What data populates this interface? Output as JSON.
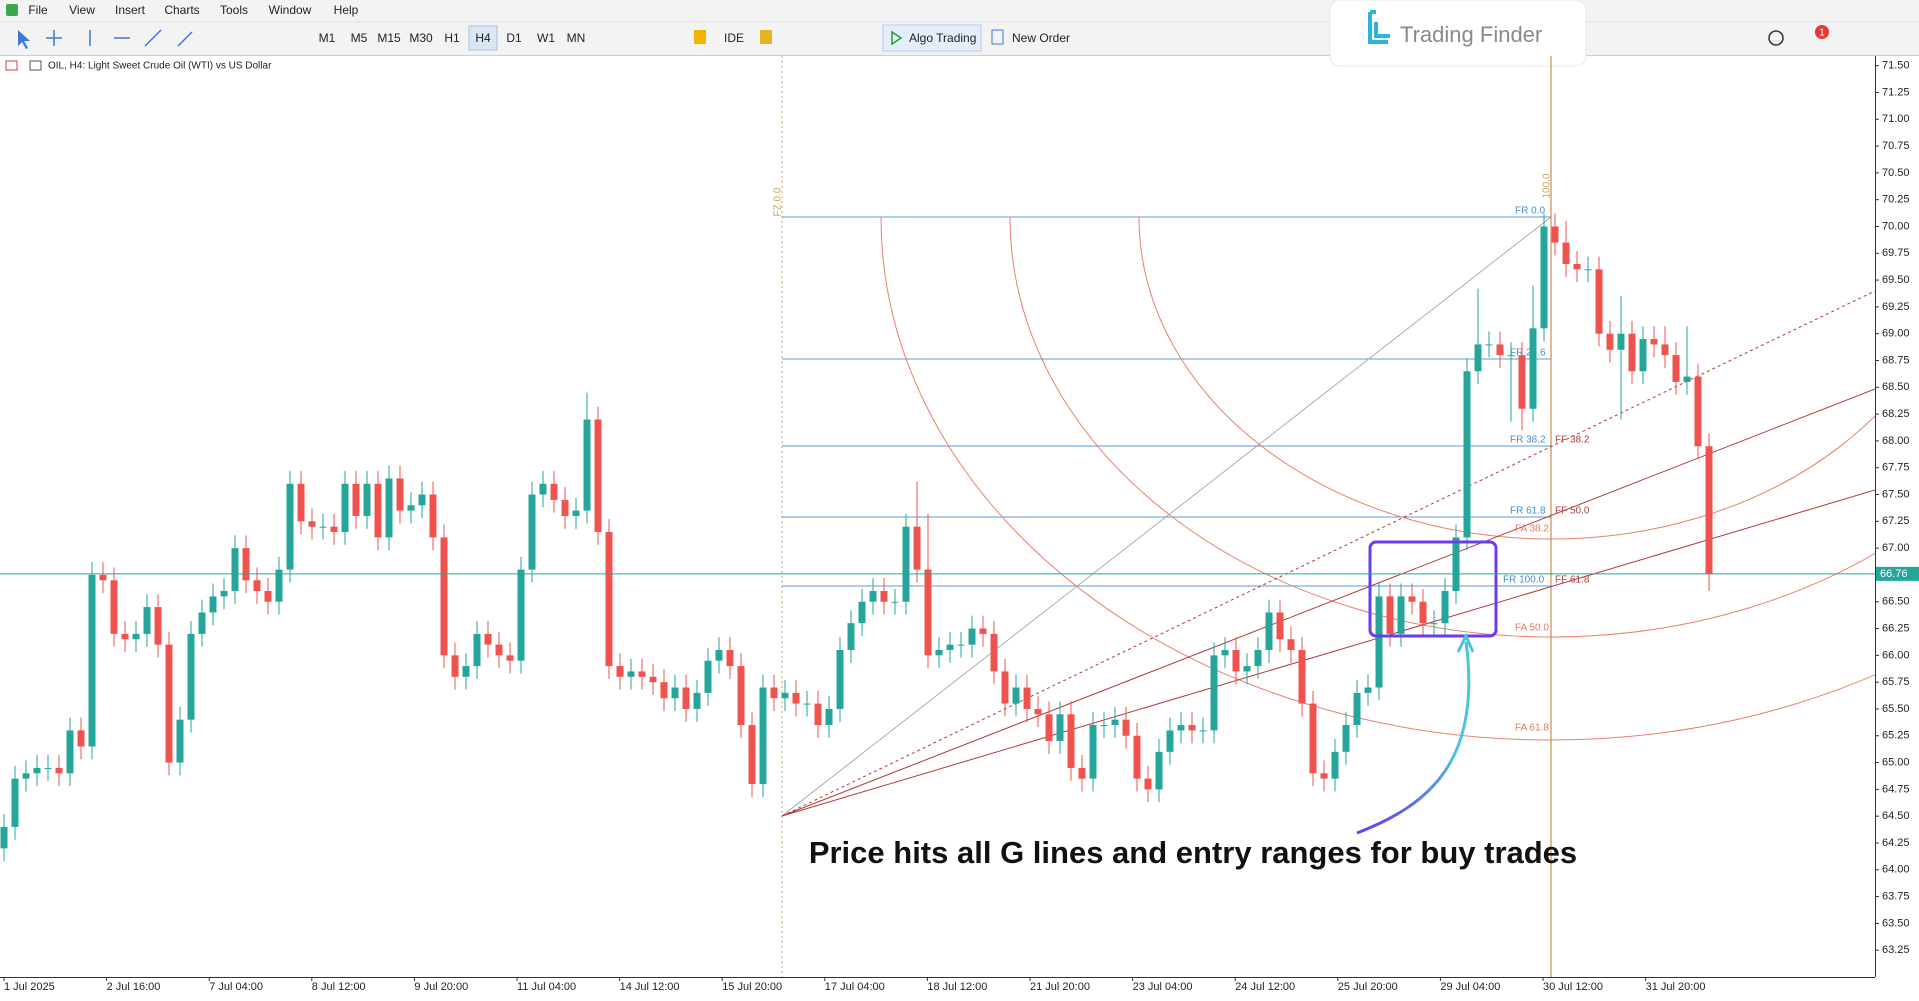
{
  "menu": [
    "File",
    "View",
    "Insert",
    "Charts",
    "Tools",
    "Window",
    "Help"
  ],
  "toolbar": {
    "timeframes": [
      "M1",
      "M5",
      "M15",
      "M30",
      "H1",
      "H4",
      "D1",
      "W1",
      "MN"
    ],
    "ide": "IDE",
    "algo_trading": "Algo Trading",
    "new_order": "New Order",
    "notifications": 1
  },
  "logo": "Trading Finder",
  "annotation": "Price hits all G lines and entry ranges for buy trades",
  "drawing": {
    "fz": "FZ 0.0",
    "top": "100.0",
    "fr": [
      "FR 0.0",
      "FR 23.6",
      "FR 38.2",
      "FR 61.8",
      "FR 100.0"
    ],
    "ff": [
      "FF 38.2",
      "FF 50.0",
      "FF 61.8"
    ],
    "fa": [
      "FA 38.2",
      "FA 50.0",
      "FA 61.8"
    ]
  },
  "chart_data": {
    "type": "candlestick",
    "title": "OIL, H4: Light Sweet Crude Oil (WTI) vs US Dollar",
    "up_color": "#26a69a",
    "down_color": "#ef5350",
    "last_price": 66.76,
    "last_price_color": "#26a69a",
    "x": [
      "1 Jul 2025",
      "2 Jul 16:00",
      "7 Jul 04:00",
      "8 Jul 12:00",
      "9 Jul 20:00",
      "11 Jul 04:00",
      "14 Jul 12:00",
      "15 Jul 20:00",
      "17 Jul 04:00",
      "18 Jul 12:00",
      "21 Jul 20:00",
      "23 Jul 04:00",
      "24 Jul 12:00",
      "25 Jul 20:00",
      "29 Jul 04:00",
      "30 Jul 12:00",
      "31 Jul 20:00"
    ],
    "ylim": [
      63.0,
      71.59
    ],
    "yticks": [
      63.25,
      {
        "value": 63.5,
        "label": "63.50"
      },
      63.75,
      {
        "value": 64,
        "label": "64.00"
      },
      64.25,
      {
        "value": 64.5,
        "label": "64.50"
      },
      64.75,
      {
        "value": 65,
        "label": "65.00"
      },
      65.25,
      {
        "value": 65.5,
        "label": "65.50"
      },
      65.75,
      {
        "value": 66,
        "label": "66.00"
      },
      66.25,
      {
        "value": 66.5,
        "label": "66.50"
      },
      66.75,
      {
        "value": 67,
        "label": "67.00"
      },
      67.25,
      {
        "value": 67.5,
        "label": "67.50"
      },
      67.75,
      {
        "value": 68,
        "label": "68.00"
      },
      68.25,
      {
        "value": 68.5,
        "label": "68.50"
      },
      68.75,
      {
        "value": 69,
        "label": "69.00"
      },
      69.25,
      {
        "value": 69.5,
        "label": "69.50"
      },
      69.75,
      {
        "value": 70,
        "label": "70.00"
      },
      70.25,
      {
        "value": 70.5,
        "label": "70.50"
      },
      70.75,
      {
        "value": 71,
        "label": "71.00"
      },
      71.25,
      {
        "value": 71.5,
        "label": "71.50"
      }
    ],
    "candles": [
      [
        64.2,
        64.52,
        64.08,
        64.4
      ],
      [
        64.4,
        64.97,
        64.28,
        64.85
      ],
      [
        64.85,
        65.02,
        64.73,
        64.9
      ],
      [
        64.9,
        65.07,
        64.78,
        64.95
      ],
      [
        64.95,
        65.07,
        64.83,
        64.95
      ],
      [
        64.95,
        65.07,
        64.78,
        64.9
      ],
      [
        64.9,
        65.42,
        64.78,
        65.3
      ],
      [
        65.3,
        65.42,
        65.03,
        65.15
      ],
      [
        65.15,
        66.87,
        65.03,
        66.75
      ],
      [
        66.75,
        66.87,
        66.58,
        66.7
      ],
      [
        66.7,
        66.82,
        66.08,
        66.2
      ],
      [
        66.2,
        66.32,
        66.03,
        66.15
      ],
      [
        66.15,
        66.32,
        66.03,
        66.2
      ],
      [
        66.2,
        66.57,
        66.08,
        66.45
      ],
      [
        66.45,
        66.57,
        65.98,
        66.1
      ],
      [
        66.1,
        66.22,
        64.88,
        65.0
      ],
      [
        65.0,
        65.52,
        64.88,
        65.4
      ],
      [
        65.4,
        66.32,
        65.28,
        66.2
      ],
      [
        66.2,
        66.52,
        66.08,
        66.4
      ],
      [
        66.4,
        66.67,
        66.28,
        66.55
      ],
      [
        66.55,
        66.72,
        66.43,
        66.6
      ],
      [
        66.6,
        67.12,
        66.48,
        67.0
      ],
      [
        67.0,
        67.12,
        66.58,
        66.7
      ],
      [
        66.7,
        66.82,
        66.48,
        66.6
      ],
      [
        66.6,
        66.72,
        66.38,
        66.5
      ],
      [
        66.5,
        66.92,
        66.38,
        66.8
      ],
      [
        66.8,
        67.72,
        66.68,
        67.6
      ],
      [
        67.6,
        67.72,
        67.13,
        67.25
      ],
      [
        67.25,
        67.37,
        67.08,
        67.2
      ],
      [
        67.2,
        67.32,
        67.08,
        67.2
      ],
      [
        67.2,
        67.32,
        67.03,
        67.15
      ],
      [
        67.15,
        67.72,
        67.03,
        67.6
      ],
      [
        67.6,
        67.72,
        67.18,
        67.3
      ],
      [
        67.3,
        67.72,
        67.18,
        67.6
      ],
      [
        67.6,
        67.72,
        66.98,
        67.1
      ],
      [
        67.1,
        67.77,
        66.98,
        67.65
      ],
      [
        67.65,
        67.77,
        67.23,
        67.35
      ],
      [
        67.35,
        67.52,
        67.23,
        67.4
      ],
      [
        67.4,
        67.62,
        67.28,
        67.5
      ],
      [
        67.5,
        67.62,
        66.98,
        67.1
      ],
      [
        67.1,
        67.22,
        65.88,
        66.0
      ],
      [
        66.0,
        66.12,
        65.68,
        65.8
      ],
      [
        65.8,
        66.02,
        65.68,
        65.9
      ],
      [
        65.9,
        66.32,
        65.78,
        66.2
      ],
      [
        66.2,
        66.32,
        65.98,
        66.1
      ],
      [
        66.1,
        66.22,
        65.88,
        66.0
      ],
      [
        66.0,
        66.12,
        65.83,
        65.95
      ],
      [
        65.95,
        66.92,
        65.83,
        66.8
      ],
      [
        66.8,
        67.62,
        66.68,
        67.5
      ],
      [
        67.5,
        67.72,
        67.38,
        67.6
      ],
      [
        67.6,
        67.72,
        67.33,
        67.45
      ],
      [
        67.45,
        67.57,
        67.18,
        67.3
      ],
      [
        67.3,
        67.47,
        67.18,
        67.35
      ],
      [
        67.35,
        68.45,
        67.23,
        68.2
      ],
      [
        68.2,
        68.32,
        67.03,
        67.15
      ],
      [
        67.15,
        67.27,
        65.78,
        65.9
      ],
      [
        65.9,
        66.02,
        65.68,
        65.8
      ],
      [
        65.8,
        65.97,
        65.68,
        65.85
      ],
      [
        65.85,
        65.97,
        65.68,
        65.8
      ],
      [
        65.8,
        65.92,
        65.63,
        65.75
      ],
      [
        65.75,
        65.87,
        65.48,
        65.6
      ],
      [
        65.6,
        65.82,
        65.48,
        65.7
      ],
      [
        65.7,
        65.82,
        65.38,
        65.5
      ],
      [
        65.5,
        65.77,
        65.38,
        65.65
      ],
      [
        65.65,
        66.07,
        65.53,
        65.95
      ],
      [
        65.95,
        66.17,
        65.83,
        66.05
      ],
      [
        66.05,
        66.17,
        65.78,
        65.9
      ],
      [
        65.9,
        66.02,
        65.23,
        65.35
      ],
      [
        65.35,
        65.47,
        64.68,
        64.8
      ],
      [
        64.8,
        65.82,
        64.68,
        65.7
      ],
      [
        65.7,
        65.82,
        65.48,
        65.6
      ],
      [
        65.6,
        65.77,
        65.48,
        65.65
      ],
      [
        65.65,
        65.77,
        65.43,
        65.55
      ],
      [
        65.55,
        65.67,
        65.43,
        65.55
      ],
      [
        65.55,
        65.67,
        65.23,
        65.35
      ],
      [
        65.35,
        65.62,
        65.23,
        65.5
      ],
      [
        65.5,
        66.17,
        65.38,
        66.05
      ],
      [
        66.05,
        66.42,
        65.93,
        66.3
      ],
      [
        66.3,
        66.62,
        66.18,
        66.5
      ],
      [
        66.5,
        66.72,
        66.38,
        66.6
      ],
      [
        66.6,
        66.72,
        66.38,
        66.5
      ],
      [
        66.5,
        66.62,
        66.38,
        66.5
      ],
      [
        66.5,
        67.32,
        66.38,
        67.2
      ],
      [
        67.2,
        67.62,
        66.68,
        66.8
      ],
      [
        66.8,
        67.32,
        65.88,
        66.0
      ],
      [
        66.0,
        66.17,
        65.88,
        66.05
      ],
      [
        66.05,
        66.22,
        65.93,
        66.1
      ],
      [
        66.1,
        66.22,
        65.98,
        66.1
      ],
      [
        66.1,
        66.37,
        65.98,
        66.25
      ],
      [
        66.25,
        66.37,
        66.08,
        66.2
      ],
      [
        66.2,
        66.32,
        65.73,
        65.85
      ],
      [
        65.85,
        65.97,
        65.43,
        65.55
      ],
      [
        65.55,
        65.82,
        65.43,
        65.7
      ],
      [
        65.7,
        65.82,
        65.38,
        65.5
      ],
      [
        65.5,
        65.62,
        65.33,
        65.45
      ],
      [
        65.45,
        65.57,
        65.08,
        65.2
      ],
      [
        65.2,
        65.57,
        65.08,
        65.45
      ],
      [
        65.45,
        65.57,
        64.83,
        64.95
      ],
      [
        64.95,
        65.07,
        64.73,
        64.85
      ],
      [
        64.85,
        65.47,
        64.73,
        65.35
      ],
      [
        65.35,
        65.47,
        65.23,
        65.35
      ],
      [
        65.35,
        65.52,
        65.23,
        65.4
      ],
      [
        65.4,
        65.52,
        65.13,
        65.25
      ],
      [
        65.25,
        65.37,
        64.73,
        64.85
      ],
      [
        64.85,
        64.97,
        64.63,
        64.75
      ],
      [
        64.75,
        65.22,
        64.63,
        65.1
      ],
      [
        65.1,
        65.42,
        64.98,
        65.3
      ],
      [
        65.3,
        65.47,
        65.18,
        65.35
      ],
      [
        65.35,
        65.47,
        65.18,
        65.3
      ],
      [
        65.3,
        65.42,
        65.18,
        65.3
      ],
      [
        65.3,
        66.12,
        65.18,
        66.0
      ],
      [
        66.0,
        66.17,
        65.88,
        66.05
      ],
      [
        66.05,
        66.17,
        65.73,
        65.85
      ],
      [
        65.85,
        66.02,
        65.73,
        65.9
      ],
      [
        65.9,
        66.17,
        65.78,
        66.05
      ],
      [
        66.05,
        66.52,
        65.93,
        66.4
      ],
      [
        66.4,
        66.52,
        66.03,
        66.15
      ],
      [
        66.15,
        66.27,
        65.93,
        66.05
      ],
      [
        66.05,
        66.17,
        65.43,
        65.55
      ],
      [
        65.55,
        65.67,
        64.78,
        64.9
      ],
      [
        64.9,
        65.02,
        64.73,
        64.85
      ],
      [
        64.85,
        65.22,
        64.73,
        65.1
      ],
      [
        65.1,
        65.47,
        64.98,
        65.35
      ],
      [
        65.35,
        65.77,
        65.23,
        65.65
      ],
      [
        65.65,
        65.82,
        65.53,
        65.7
      ],
      [
        65.7,
        66.67,
        65.58,
        66.55
      ],
      [
        66.55,
        66.67,
        66.08,
        66.2
      ],
      [
        66.2,
        66.67,
        66.08,
        66.55
      ],
      [
        66.55,
        66.67,
        66.38,
        66.5
      ],
      [
        66.5,
        66.62,
        66.18,
        66.3
      ],
      [
        66.3,
        66.42,
        66.18,
        66.3
      ],
      [
        66.3,
        66.72,
        66.18,
        66.6
      ],
      [
        66.6,
        67.22,
        66.48,
        67.1
      ],
      [
        67.1,
        68.77,
        66.98,
        68.65
      ],
      [
        68.65,
        69.42,
        68.53,
        68.9
      ],
      [
        68.9,
        69.02,
        68.78,
        68.9
      ],
      [
        68.9,
        69.02,
        68.68,
        68.8
      ],
      [
        68.8,
        68.92,
        68.18,
        68.8
      ],
      [
        68.8,
        68.92,
        68.1,
        68.3
      ],
      [
        68.3,
        69.45,
        68.18,
        69.05
      ],
      [
        69.05,
        70.12,
        68.93,
        70.0
      ],
      [
        70.0,
        70.12,
        69.73,
        69.85
      ],
      [
        69.85,
        70.05,
        69.53,
        69.65
      ],
      [
        69.65,
        69.77,
        69.48,
        69.6
      ],
      [
        69.6,
        69.72,
        69.48,
        69.6
      ],
      [
        69.6,
        69.72,
        68.88,
        69.0
      ],
      [
        69.0,
        69.12,
        68.73,
        68.85
      ],
      [
        68.85,
        69.35,
        68.2,
        69.0
      ],
      [
        69.0,
        69.12,
        68.53,
        68.65
      ],
      [
        68.65,
        69.07,
        68.53,
        68.95
      ],
      [
        68.95,
        69.07,
        68.78,
        68.9
      ],
      [
        68.9,
        69.07,
        68.68,
        68.8
      ],
      [
        68.8,
        68.92,
        68.43,
        68.55
      ],
      [
        68.55,
        69.07,
        68.43,
        68.6
      ],
      [
        68.6,
        68.72,
        67.83,
        67.95
      ],
      [
        67.95,
        68.07,
        66.6,
        66.76
      ]
    ]
  }
}
